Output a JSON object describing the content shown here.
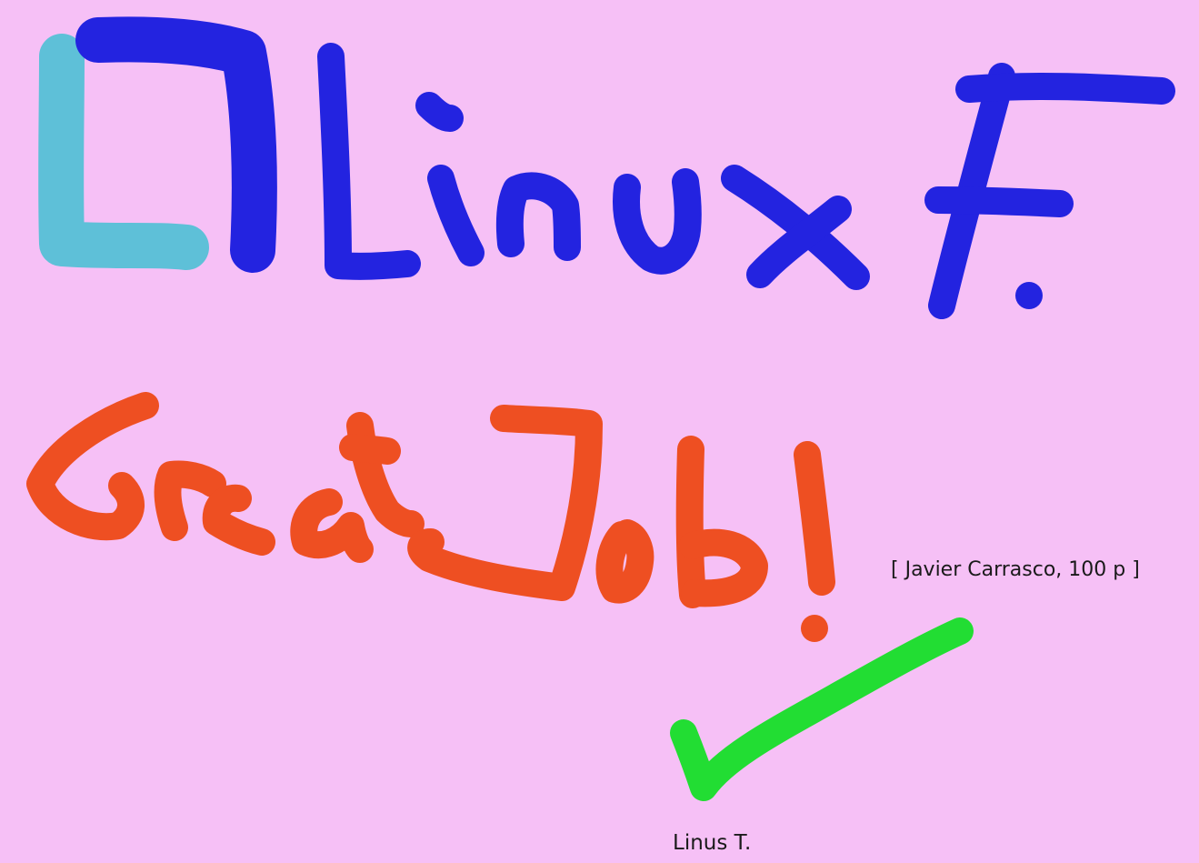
{
  "canvas": {
    "background": "#f6c0f6"
  },
  "colors": {
    "logo_light": "#5ec0d8",
    "logo_dark": "#2323e0",
    "heading": "#2323e0",
    "praise": "#ee4f22",
    "checkmark": "#22dd33"
  },
  "drawing": {
    "logo": "square-logo",
    "heading_text": "Linux F.",
    "praise_text": "Great Job!",
    "mark": "checkmark-icon"
  },
  "annotations": {
    "credit": "[ Javier Carrasco, 100 p ]",
    "signature": "Linus T."
  }
}
